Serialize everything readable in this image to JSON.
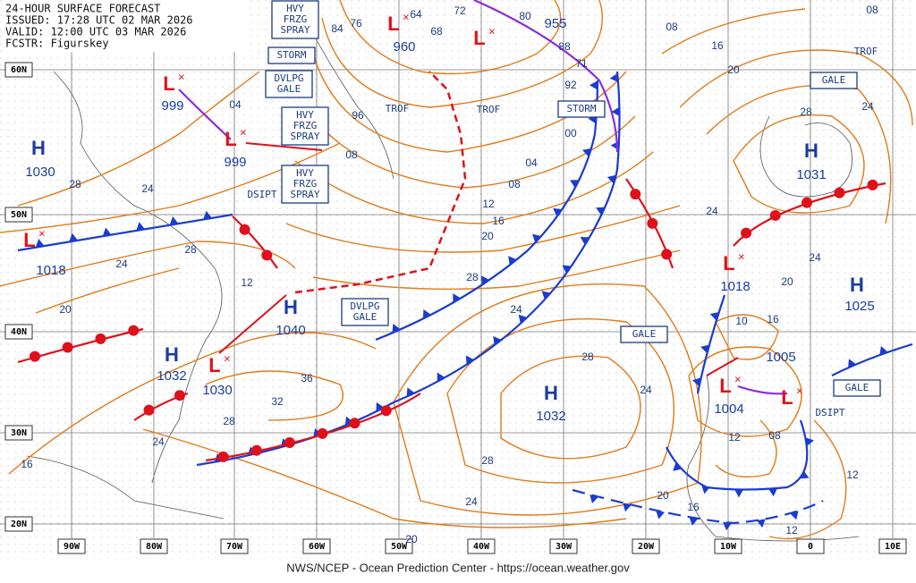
{
  "header": {
    "lines": [
      "24-HOUR SURFACE FORECAST",
      "ISSUED: 17:28 UTC 02 MAR 2026",
      "VALID:  12:00 UTC 03 MAR 2026",
      "FCSTR: Figurskey"
    ]
  },
  "footer": "NWS/NCEP - Ocean Prediction Center - https://ocean.weather.gov",
  "lat_labels": [
    "60N",
    "50N",
    "40N",
    "30N",
    "20N"
  ],
  "lon_labels": [
    "90W",
    "80W",
    "70W",
    "60W",
    "50W",
    "40W",
    "30W",
    "20W",
    "10W",
    "0",
    "10E"
  ],
  "centers": [
    {
      "type": "H",
      "pressure": 1030
    },
    {
      "type": "L",
      "pressure": 999
    },
    {
      "type": "L",
      "pressure": 999
    },
    {
      "type": "L",
      "pressure": 1018
    },
    {
      "type": "L",
      "pressure": 960
    },
    {
      "type": "L",
      "pressure": 955
    },
    {
      "type": "H",
      "pressure": 1040
    },
    {
      "type": "H",
      "pressure": 1032
    },
    {
      "type": "L",
      "pressure": 1030
    },
    {
      "type": "H",
      "pressure": 1032
    },
    {
      "type": "H",
      "pressure": 1031
    },
    {
      "type": "L",
      "pressure": 1018
    },
    {
      "type": "H",
      "pressure": 1025
    },
    {
      "type": "L",
      "pressure": 1004
    },
    {
      "type": "L",
      "pressure": 1005
    }
  ],
  "isobar_labels": [
    "64",
    "72",
    "80",
    "76",
    "84",
    "68",
    "88",
    "92",
    "96",
    "04",
    "08",
    "00",
    "04",
    "08",
    "12",
    "16",
    "20",
    "24",
    "28",
    "28",
    "24",
    "20",
    "28",
    "24",
    "28",
    "24",
    "36",
    "32",
    "28",
    "24",
    "16",
    "28",
    "24",
    "20",
    "20",
    "16",
    "12",
    "08",
    "12",
    "12",
    "20",
    "24",
    "16",
    "24",
    "28",
    "20",
    "16",
    "08",
    "24",
    "08",
    "71",
    "12",
    "10"
  ],
  "boxes": [
    {
      "lines": [
        "HVY",
        "FRZG",
        "SPRAY"
      ]
    },
    {
      "lines": [
        "STORM"
      ]
    },
    {
      "lines": [
        "DVLPG",
        "GALE"
      ]
    },
    {
      "lines": [
        "HVY",
        "FRZG",
        "SPRAY"
      ]
    },
    {
      "lines": [
        "HVY",
        "FRZG",
        "SPRAY"
      ]
    },
    {
      "lines": [
        "DVLPG",
        "GALE"
      ]
    },
    {
      "lines": [
        "STORM"
      ]
    },
    {
      "lines": [
        "GALE"
      ]
    },
    {
      "lines": [
        "GALE"
      ]
    },
    {
      "lines": [
        "GALE"
      ]
    }
  ],
  "labels": [
    "TROF",
    "TROF",
    "TROF",
    "DSIPT",
    "DSIPT"
  ]
}
